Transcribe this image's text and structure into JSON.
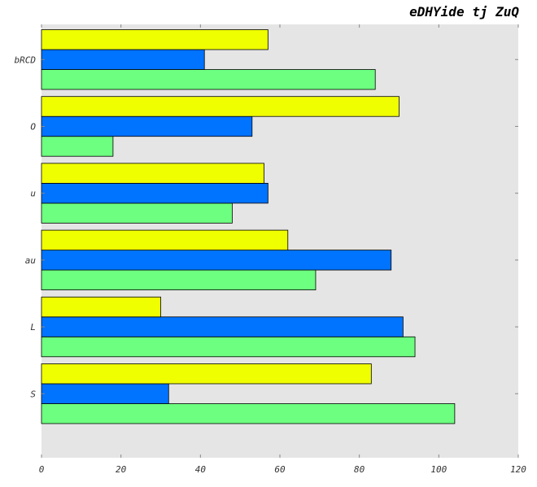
{
  "chart_data": {
    "type": "bar",
    "orientation": "horizontal",
    "title": "eDHYide tj ZuQ",
    "xlabel": "",
    "ylabel": "",
    "categories": [
      "S",
      "L",
      "au",
      "u",
      "O",
      "bRCD"
    ],
    "series": [
      {
        "color": "#6dff80",
        "values": [
          104,
          94,
          69,
          48,
          18,
          84
        ]
      },
      {
        "color": "#0073ff",
        "values": [
          32,
          91,
          88,
          57,
          53,
          41
        ]
      },
      {
        "color": "#f0ff00",
        "values": [
          83,
          30,
          62,
          56,
          90,
          57
        ]
      }
    ],
    "xlim": [
      0,
      120
    ],
    "xticks": [
      0,
      20,
      40,
      60,
      80,
      100,
      120
    ],
    "grid": false,
    "background": "#e5e5e5"
  }
}
